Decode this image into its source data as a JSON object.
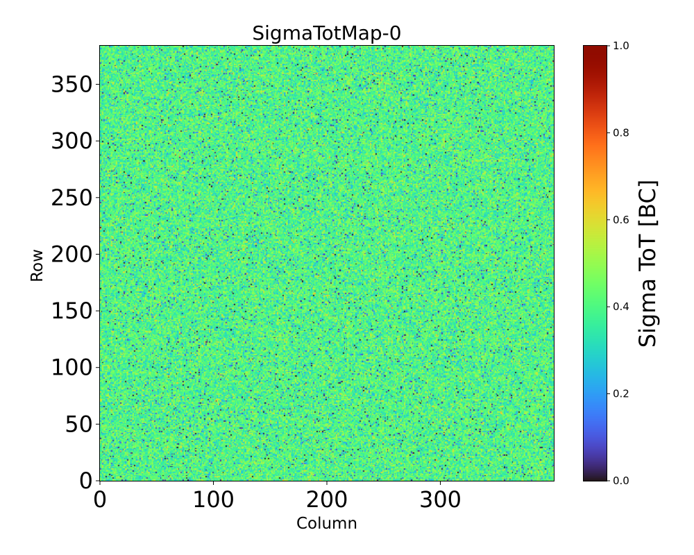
{
  "chart_data": {
    "type": "heatmap",
    "title": "SigmaTotMap-0",
    "xlabel": "Column",
    "ylabel": "Row",
    "colorbar_label": "Sigma ToT [BC]",
    "colormap": "turbo",
    "xlim": [
      0,
      400
    ],
    "ylim": [
      0,
      384
    ],
    "clim": [
      0.0,
      1.0
    ],
    "x_ticks": [
      0,
      100,
      200,
      300
    ],
    "x_tick_labels": [
      "0",
      "100",
      "200",
      "300"
    ],
    "y_ticks": [
      0,
      50,
      100,
      150,
      200,
      250,
      300,
      350
    ],
    "y_tick_labels": [
      "0",
      "50",
      "100",
      "150",
      "200",
      "250",
      "300",
      "350"
    ],
    "colorbar_ticks": [
      0.0,
      0.2,
      0.4,
      0.6,
      0.8,
      1.0
    ],
    "colorbar_tick_labels": [
      "0.0",
      "0.2",
      "0.4",
      "0.6",
      "0.8",
      "1.0"
    ],
    "value_distribution": {
      "mean": 0.4,
      "std": 0.08
    },
    "grid": false
  }
}
